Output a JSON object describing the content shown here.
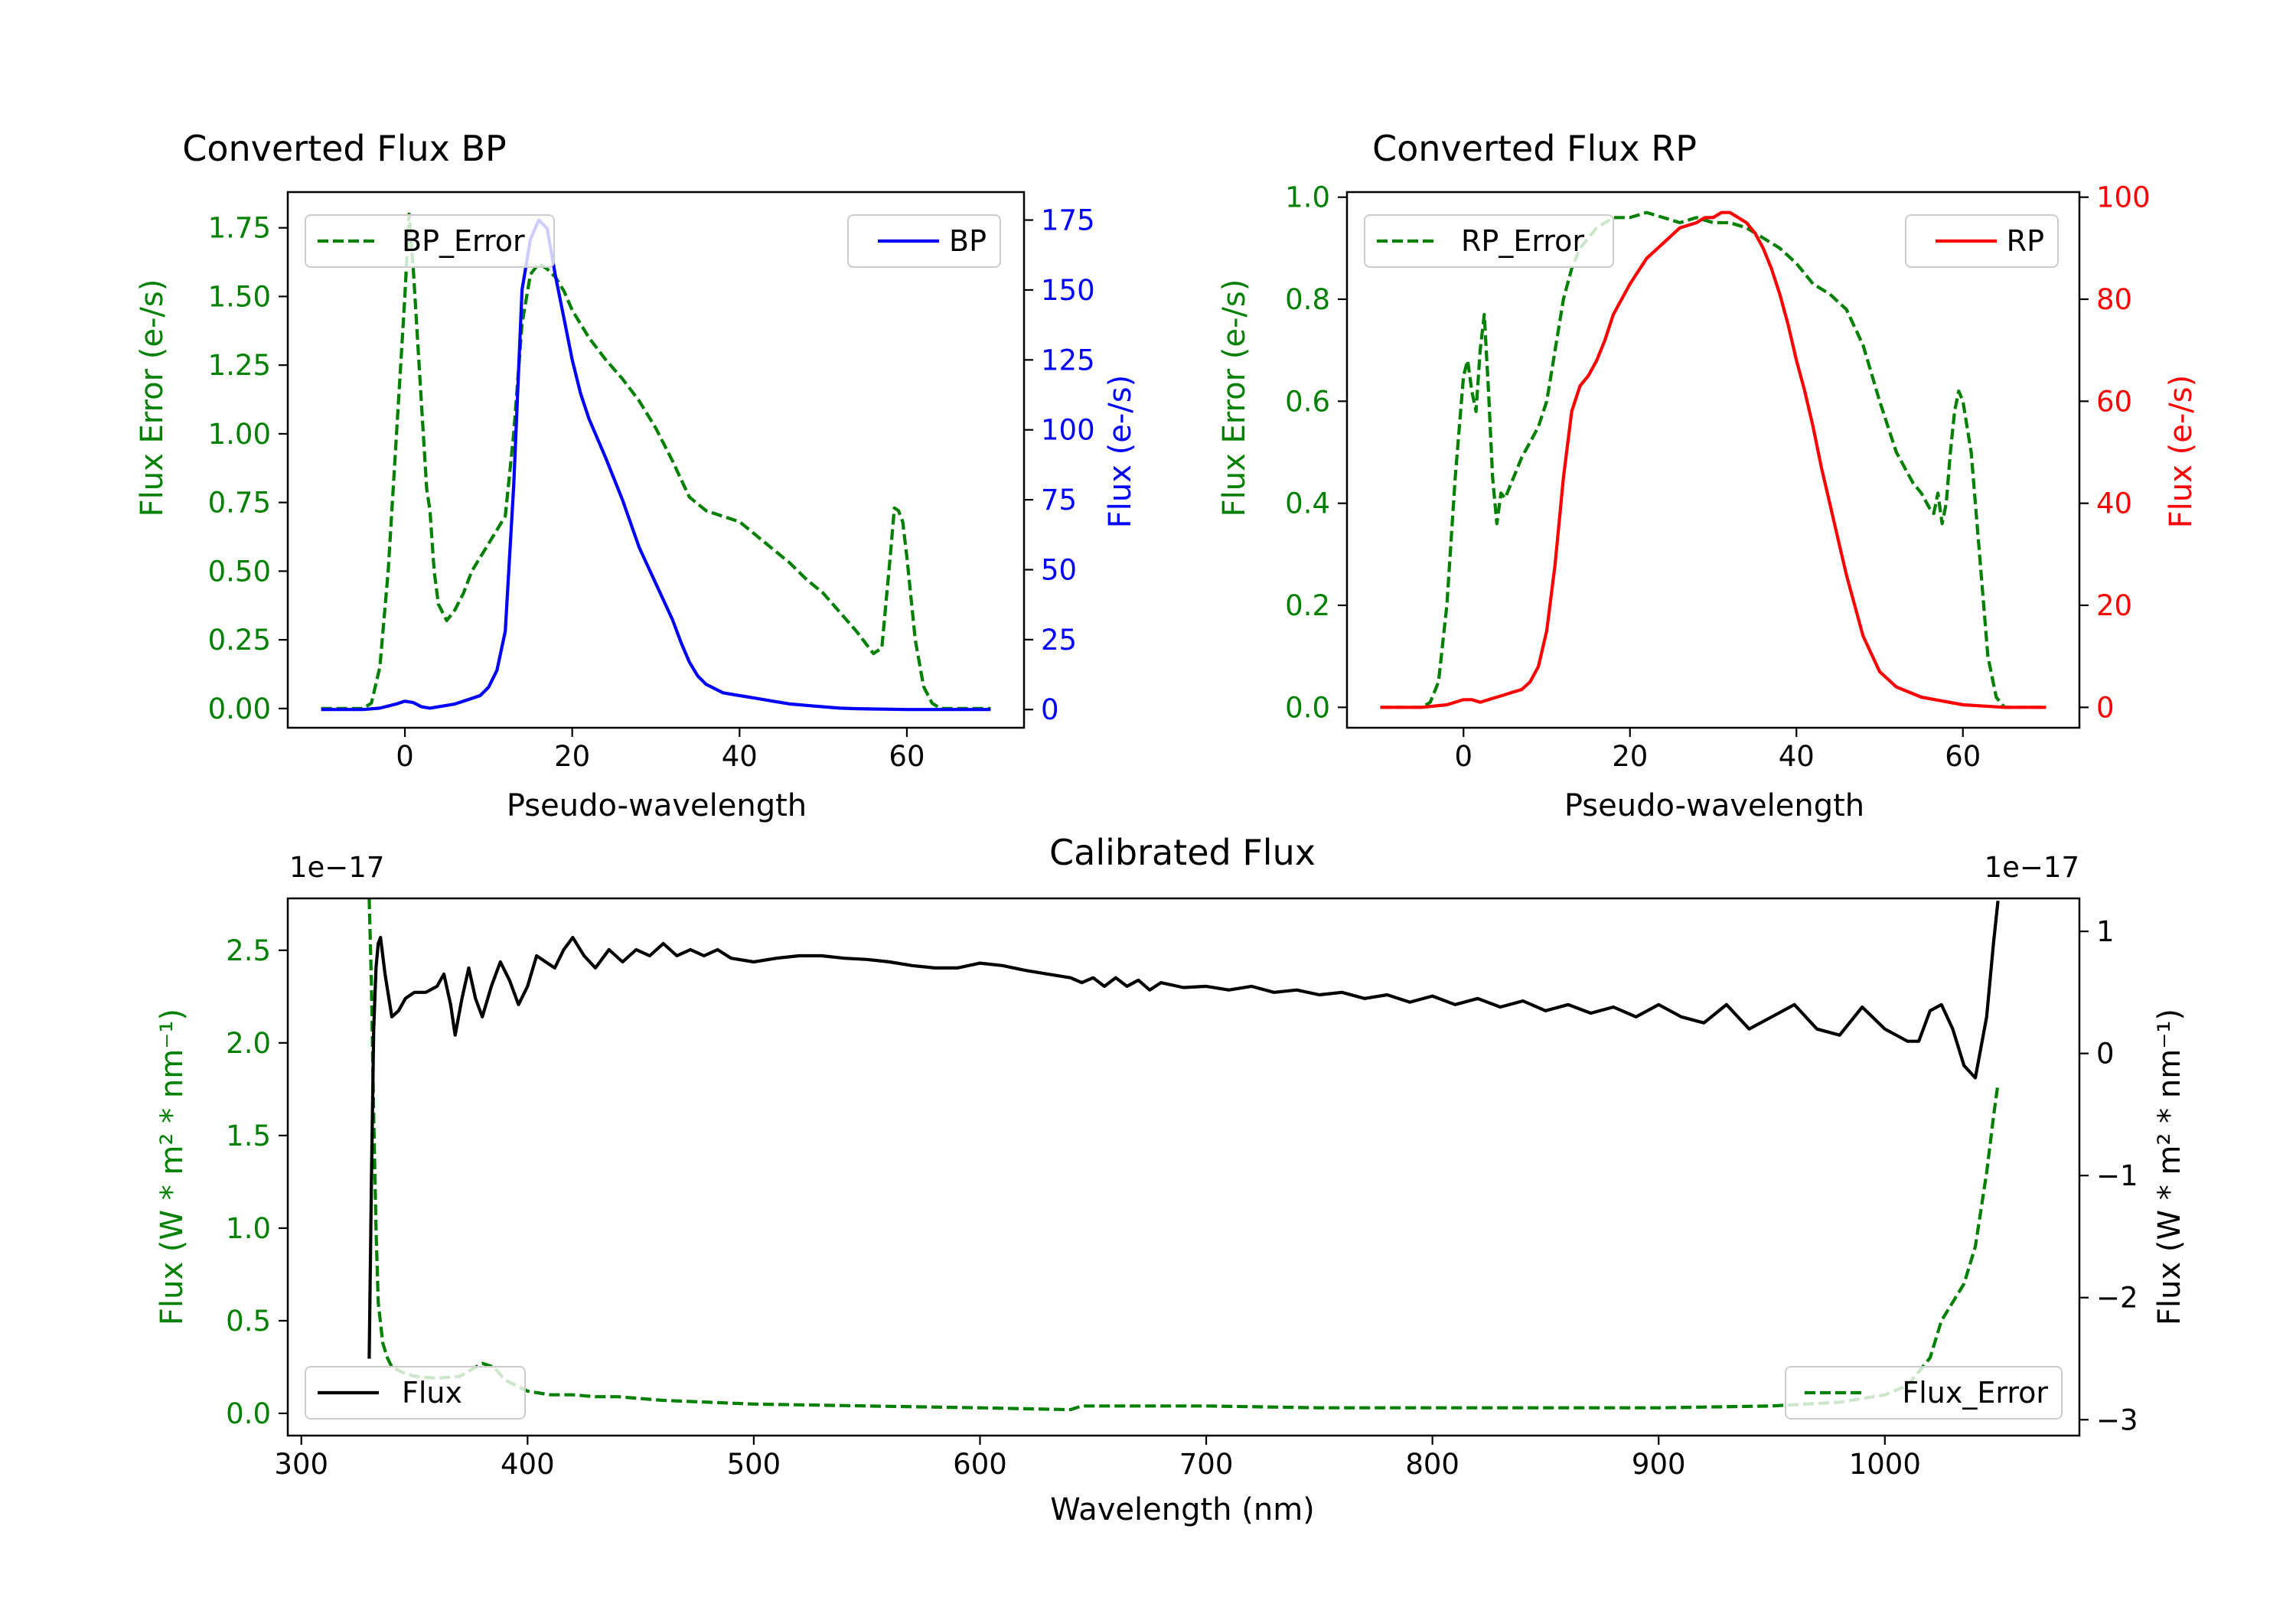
{
  "chart_data": [
    {
      "type": "line",
      "title": "Converted Flux BP",
      "xlabel": "Pseudo-wavelength",
      "ylabel": "Flux Error (e-/s)",
      "ylabel_right": "Flux (e-/s)",
      "xlim": [
        -14,
        74
      ],
      "ylim": [
        -0.07,
        1.88
      ],
      "ylim_right": [
        -6.5,
        185
      ],
      "x_ticks": [
        0,
        20,
        40,
        60
      ],
      "x_tick_labels": [
        "0",
        "20",
        "40",
        "60"
      ],
      "y_ticks": [
        0,
        0.25,
        0.5,
        0.75,
        1.0,
        1.25,
        1.5,
        1.75
      ],
      "y_tick_labels": [
        "0.00",
        "0.25",
        "0.50",
        "0.75",
        "1.00",
        "1.25",
        "1.50",
        "1.75"
      ],
      "y_right_ticks": [
        0,
        25,
        50,
        75,
        100,
        125,
        150,
        175
      ],
      "y_right_tick_labels": [
        "0",
        "25",
        "50",
        "75",
        "100",
        "125",
        "150",
        "175"
      ],
      "left_color": "#008000",
      "right_color": "#0000ff",
      "series": [
        {
          "name": "BP_Error",
          "axis": "left",
          "color": "#008000",
          "style": "dashed",
          "x": [
            -10,
            -5,
            -4,
            -3,
            -2,
            -1,
            0,
            0.5,
            1,
            2,
            2.6,
            3,
            3.5,
            4,
            5,
            6,
            7,
            8,
            9,
            10,
            11,
            12,
            13,
            14,
            15,
            16,
            17,
            18,
            19,
            20,
            22,
            24,
            26,
            28,
            30,
            32,
            34,
            36,
            38,
            40,
            42,
            44,
            46,
            48,
            50,
            52,
            54,
            55,
            56,
            57,
            58,
            58.5,
            59,
            59.5,
            60,
            61,
            62,
            63,
            64,
            65,
            70
          ],
          "y": [
            0,
            0,
            0.02,
            0.15,
            0.5,
            1.0,
            1.5,
            1.8,
            1.6,
            1.1,
            0.8,
            0.72,
            0.5,
            0.38,
            0.32,
            0.36,
            0.42,
            0.5,
            0.55,
            0.6,
            0.65,
            0.7,
            1.0,
            1.4,
            1.58,
            1.62,
            1.6,
            1.57,
            1.52,
            1.45,
            1.35,
            1.27,
            1.2,
            1.12,
            1.02,
            0.9,
            0.77,
            0.72,
            0.7,
            0.68,
            0.63,
            0.58,
            0.53,
            0.47,
            0.42,
            0.35,
            0.28,
            0.24,
            0.2,
            0.22,
            0.55,
            0.73,
            0.72,
            0.68,
            0.55,
            0.25,
            0.08,
            0.02,
            0,
            0,
            0
          ]
        },
        {
          "name": "BP",
          "axis": "right",
          "color": "#0000ff",
          "style": "solid",
          "x": [
            -10,
            -5,
            -3,
            -1,
            0,
            1,
            2,
            3,
            4,
            5,
            6,
            7,
            8,
            9,
            10,
            11,
            12,
            13,
            14,
            15,
            16,
            17,
            18,
            19,
            20,
            21,
            22,
            24,
            26,
            28,
            30,
            32,
            33,
            34,
            35,
            36,
            38,
            40,
            42,
            44,
            46,
            48,
            50,
            52,
            54,
            56,
            60,
            65,
            70
          ],
          "y": [
            0,
            0,
            0.5,
            2,
            3,
            2.5,
            1,
            0.5,
            1,
            1.5,
            2,
            3,
            4,
            5,
            8,
            14,
            28,
            80,
            150,
            168,
            175,
            172,
            155,
            140,
            125,
            113,
            104,
            90,
            75,
            58,
            45,
            32,
            24,
            17,
            12,
            9,
            6,
            5,
            4,
            3,
            2,
            1.5,
            1,
            0.5,
            0.3,
            0.2,
            0,
            0,
            0
          ]
        }
      ],
      "legend": [
        {
          "label": "BP_Error",
          "location": "upper-left"
        },
        {
          "label": "BP",
          "location": "upper-right"
        }
      ]
    },
    {
      "type": "line",
      "title": "Converted Flux RP",
      "xlabel": "Pseudo-wavelength",
      "ylabel": "Flux Error (e-/s)",
      "ylabel_right": "Flux (e-/s)",
      "xlim": [
        -14,
        74
      ],
      "ylim": [
        -0.04,
        1.01
      ],
      "ylim_right": [
        -4,
        101
      ],
      "x_ticks": [
        0,
        20,
        40,
        60
      ],
      "x_tick_labels": [
        "0",
        "20",
        "40",
        "60"
      ],
      "y_ticks": [
        0,
        0.2,
        0.4,
        0.6,
        0.8,
        1.0
      ],
      "y_tick_labels": [
        "0.0",
        "0.2",
        "0.4",
        "0.6",
        "0.8",
        "1.0"
      ],
      "y_right_ticks": [
        0,
        20,
        40,
        60,
        80,
        100
      ],
      "y_right_tick_labels": [
        "0",
        "20",
        "40",
        "60",
        "80",
        "100"
      ],
      "left_color": "#008000",
      "right_color": "#ff0000",
      "series": [
        {
          "name": "RP_Error",
          "axis": "left",
          "color": "#008000",
          "style": "dashed",
          "x": [
            -10,
            -5,
            -4,
            -3,
            -2,
            -1,
            0,
            0.5,
            1,
            1.5,
            2,
            2.5,
            3,
            3.5,
            4,
            4.5,
            5,
            6,
            7,
            8,
            9,
            10,
            11,
            12,
            13,
            14,
            15,
            16,
            17,
            18,
            20,
            22,
            24,
            26,
            28,
            30,
            32,
            34,
            36,
            38,
            40,
            42,
            44,
            46,
            48,
            50,
            52,
            54,
            55,
            56,
            56.5,
            57,
            57.5,
            58,
            58.5,
            59,
            59.5,
            60,
            61,
            62,
            63,
            64,
            65,
            70
          ],
          "y": [
            0,
            0,
            0.01,
            0.05,
            0.2,
            0.45,
            0.65,
            0.68,
            0.62,
            0.58,
            0.7,
            0.77,
            0.62,
            0.45,
            0.36,
            0.42,
            0.41,
            0.45,
            0.49,
            0.52,
            0.55,
            0.6,
            0.7,
            0.8,
            0.86,
            0.9,
            0.92,
            0.94,
            0.95,
            0.96,
            0.96,
            0.97,
            0.96,
            0.95,
            0.96,
            0.95,
            0.95,
            0.94,
            0.92,
            0.9,
            0.87,
            0.83,
            0.81,
            0.78,
            0.71,
            0.6,
            0.5,
            0.44,
            0.42,
            0.39,
            0.38,
            0.42,
            0.36,
            0.4,
            0.5,
            0.58,
            0.62,
            0.6,
            0.5,
            0.3,
            0.1,
            0.02,
            0,
            0
          ]
        },
        {
          "name": "RP",
          "axis": "right",
          "color": "#ff0000",
          "style": "solid",
          "x": [
            -10,
            -5,
            -2,
            0,
            1,
            2,
            3,
            4,
            5,
            6,
            7,
            8,
            9,
            10,
            11,
            12,
            13,
            14,
            15,
            16,
            17,
            18,
            19,
            20,
            22,
            24,
            26,
            28,
            29,
            30,
            31,
            32,
            33,
            34,
            35,
            36,
            37,
            38,
            39,
            40,
            41,
            42,
            43,
            44,
            45,
            46,
            47,
            48,
            50,
            52,
            55,
            60,
            65,
            70
          ],
          "y": [
            0,
            0,
            0.5,
            1.5,
            1.5,
            1,
            1.5,
            2,
            2.5,
            3,
            3.5,
            5,
            8,
            15,
            28,
            45,
            58,
            63,
            65,
            68,
            72,
            77,
            80,
            83,
            88,
            91,
            94,
            95,
            96,
            96,
            97,
            97,
            96,
            95,
            93,
            90,
            86,
            81,
            75,
            68,
            62,
            55,
            47,
            40,
            33,
            26,
            20,
            14,
            7,
            4,
            2,
            0.5,
            0,
            0
          ]
        }
      ],
      "legend": [
        {
          "label": "RP_Error",
          "location": "upper-left"
        },
        {
          "label": "RP",
          "location": "upper-right"
        }
      ]
    },
    {
      "type": "line",
      "title": "Calibrated Flux",
      "xlabel": "Wavelength (nm)",
      "ylabel": "Flux (W * m² * nm⁻¹)",
      "ylabel_right": "Flux (W * m² * nm⁻¹)",
      "offset_text_left": "1e−17",
      "offset_text_right": "1e−17",
      "xlim": [
        294,
        1086
      ],
      "ylim": [
        -0.12,
        2.78
      ],
      "ylim_right": [
        -3.13,
        1.27
      ],
      "x_ticks": [
        300,
        400,
        500,
        600,
        700,
        800,
        900,
        1000
      ],
      "x_tick_labels": [
        "300",
        "400",
        "500",
        "600",
        "700",
        "800",
        "900",
        "1000"
      ],
      "y_ticks": [
        0,
        0.5,
        1.0,
        1.5,
        2.0,
        2.5
      ],
      "y_tick_labels": [
        "0.0",
        "0.5",
        "1.0",
        "1.5",
        "2.0",
        "2.5"
      ],
      "y_right_ticks": [
        -3,
        -2,
        -1,
        0,
        1
      ],
      "y_right_tick_labels": [
        "−3",
        "−2",
        "−1",
        "0",
        "1"
      ],
      "left_color": "#008000",
      "right_color": "#000000",
      "series": [
        {
          "name": "Flux_Error",
          "axis": "left",
          "color": "#008000",
          "style": "dashed",
          "x": [
            330,
            331,
            332,
            333,
            334,
            336,
            338,
            340,
            345,
            350,
            360,
            370,
            380,
            385,
            390,
            400,
            410,
            420,
            430,
            440,
            450,
            460,
            480,
            500,
            550,
            600,
            640,
            645,
            700,
            750,
            800,
            850,
            900,
            950,
            980,
            1000,
            1010,
            1020,
            1025,
            1030,
            1035,
            1040,
            1045,
            1048,
            1050
          ],
          "y": [
            2.78,
            2.3,
            1.6,
            1.0,
            0.6,
            0.38,
            0.3,
            0.25,
            0.22,
            0.2,
            0.19,
            0.2,
            0.27,
            0.25,
            0.18,
            0.12,
            0.1,
            0.1,
            0.09,
            0.09,
            0.08,
            0.07,
            0.06,
            0.05,
            0.04,
            0.03,
            0.02,
            0.04,
            0.04,
            0.03,
            0.03,
            0.03,
            0.03,
            0.04,
            0.06,
            0.1,
            0.15,
            0.3,
            0.5,
            0.6,
            0.7,
            0.9,
            1.3,
            1.6,
            1.78
          ]
        },
        {
          "name": "Flux",
          "axis": "right",
          "color": "#000000",
          "style": "solid",
          "x": [
            330,
            331,
            332,
            333,
            334,
            335,
            337,
            340,
            343,
            346,
            350,
            355,
            360,
            363,
            366,
            368,
            371,
            374,
            377,
            380,
            384,
            388,
            392,
            396,
            400,
            404,
            408,
            412,
            416,
            420,
            425,
            430,
            436,
            442,
            448,
            454,
            460,
            466,
            472,
            478,
            484,
            490,
            500,
            510,
            520,
            530,
            540,
            550,
            560,
            570,
            580,
            590,
            600,
            610,
            620,
            630,
            640,
            645,
            650,
            655,
            660,
            665,
            670,
            675,
            680,
            690,
            700,
            710,
            720,
            730,
            740,
            750,
            760,
            770,
            780,
            790,
            800,
            810,
            820,
            830,
            840,
            850,
            860,
            870,
            880,
            890,
            900,
            910,
            920,
            930,
            940,
            950,
            960,
            970,
            980,
            990,
            1000,
            1010,
            1015,
            1020,
            1025,
            1030,
            1035,
            1040,
            1045,
            1048,
            1050
          ],
          "y": [
            -2.5,
            -1.0,
            0.2,
            0.7,
            0.9,
            0.95,
            0.65,
            0.3,
            0.35,
            0.45,
            0.5,
            0.5,
            0.55,
            0.65,
            0.4,
            0.15,
            0.45,
            0.7,
            0.45,
            0.3,
            0.55,
            0.75,
            0.6,
            0.4,
            0.55,
            0.8,
            0.75,
            0.7,
            0.85,
            0.95,
            0.8,
            0.7,
            0.85,
            0.75,
            0.85,
            0.8,
            0.9,
            0.8,
            0.85,
            0.8,
            0.85,
            0.78,
            0.75,
            0.78,
            0.8,
            0.8,
            0.78,
            0.77,
            0.75,
            0.72,
            0.7,
            0.7,
            0.74,
            0.72,
            0.68,
            0.65,
            0.62,
            0.58,
            0.62,
            0.55,
            0.62,
            0.55,
            0.6,
            0.52,
            0.58,
            0.54,
            0.55,
            0.52,
            0.55,
            0.5,
            0.52,
            0.48,
            0.5,
            0.45,
            0.48,
            0.42,
            0.47,
            0.4,
            0.45,
            0.38,
            0.43,
            0.35,
            0.4,
            0.33,
            0.38,
            0.3,
            0.4,
            0.3,
            0.25,
            0.4,
            0.2,
            0.3,
            0.4,
            0.2,
            0.15,
            0.38,
            0.2,
            0.1,
            0.1,
            0.35,
            0.4,
            0.2,
            -0.1,
            -0.2,
            0.3,
            0.9,
            1.25
          ]
        }
      ],
      "legend": [
        {
          "label": "Flux",
          "location": "lower-left"
        },
        {
          "label": "Flux_Error",
          "location": "lower-right"
        }
      ]
    }
  ]
}
